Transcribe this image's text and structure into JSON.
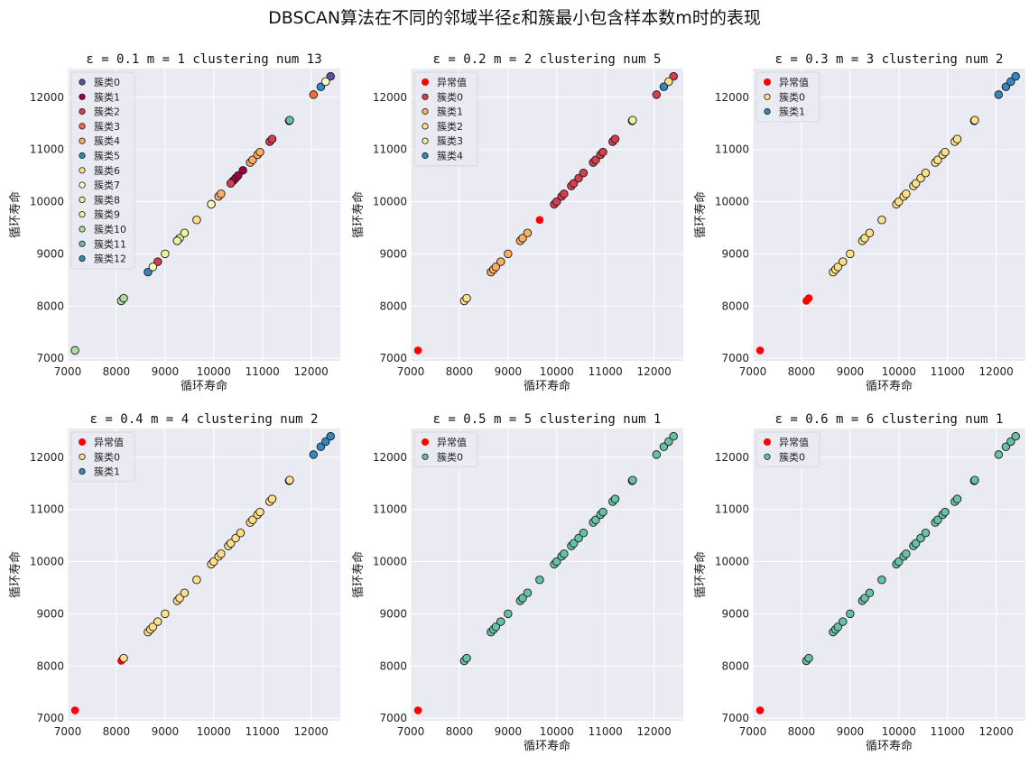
{
  "suptitle": "DBSCAN算法在不同的邻域半径ε和簇最小包含样本数m时的表现",
  "chart_data": [
    {
      "type": "scatter",
      "title": "ε = 0.1 m = 1 clustering num 13",
      "xlabel": "循环寿命",
      "ylabel": "循环寿命",
      "xlim": [
        7000,
        12600
      ],
      "ylim": [
        6950,
        12550
      ],
      "xticks": [
        7000,
        8000,
        9000,
        10000,
        11000,
        12000
      ],
      "yticks": [
        7000,
        8000,
        9000,
        10000,
        11000,
        12000
      ],
      "legend_position": "upper left",
      "series": [
        {
          "name": "簇类0",
          "color": "#5e4fa2",
          "x": [
            12400
          ],
          "y": [
            12400
          ]
        },
        {
          "name": "簇类1",
          "color": "#9e0142",
          "x": [
            10400,
            10450,
            10500,
            10600
          ],
          "y": [
            10400,
            10450,
            10500,
            10600
          ]
        },
        {
          "name": "簇类2",
          "color": "#d53e4f",
          "x": [
            8850,
            10350,
            11150,
            11200
          ],
          "y": [
            8850,
            10350,
            11150,
            11200
          ]
        },
        {
          "name": "簇类3",
          "color": "#f46d43",
          "x": [
            12050
          ],
          "y": [
            12050
          ]
        },
        {
          "name": "簇类4",
          "color": "#fdae61",
          "x": [
            10100,
            10150,
            10750,
            10800,
            10900,
            10950
          ],
          "y": [
            10100,
            10150,
            10750,
            10800,
            10900,
            10950
          ]
        },
        {
          "name": "簇类5",
          "color": "#3288bd",
          "x": [
            8650,
            9950,
            12200
          ],
          "y": [
            8650,
            9950,
            12200
          ]
        },
        {
          "name": "簇类6",
          "color": "#fee08b",
          "x": [
            9650
          ],
          "y": [
            9650
          ]
        },
        {
          "name": "簇类7",
          "color": "#ffffbf",
          "x": [
            8750,
            9950,
            12300
          ],
          "y": [
            8750,
            9950,
            12300
          ]
        },
        {
          "name": "簇类8",
          "color": "#e6f598",
          "x": [
            9000,
            9250,
            9300,
            9400
          ],
          "y": [
            9000,
            9250,
            9300,
            9400
          ]
        },
        {
          "name": "簇类9",
          "color": "#e6f598",
          "x": [
            9250
          ],
          "y": [
            9250
          ]
        },
        {
          "name": "簇类10",
          "color": "#abdda4",
          "x": [
            8100,
            8150,
            7150
          ],
          "y": [
            8100,
            8150,
            7150
          ]
        },
        {
          "name": "簇类11",
          "color": "#66c2a5",
          "x": [
            11550,
            11560
          ],
          "y": [
            11550,
            11560
          ]
        },
        {
          "name": "簇类12",
          "color": "#3288bd",
          "x": [],
          "y": []
        }
      ]
    },
    {
      "type": "scatter",
      "title": "ε = 0.2 m = 2 clustering num 5",
      "xlabel": "循环寿命",
      "ylabel": "循环寿命",
      "xlim": [
        7000,
        12600
      ],
      "ylim": [
        6950,
        12550
      ],
      "xticks": [
        7000,
        8000,
        9000,
        10000,
        11000,
        12000
      ],
      "yticks": [
        7000,
        8000,
        9000,
        10000,
        11000,
        12000
      ],
      "legend_position": "upper left",
      "series": [
        {
          "name": "异常值",
          "color": "#ff0000",
          "x": [
            7150,
            9650
          ],
          "y": [
            7150,
            9650
          ]
        },
        {
          "name": "簇类0",
          "color": "#d53e4f",
          "x": [
            9950,
            10000,
            10100,
            10150,
            10300,
            10350,
            10450,
            10550,
            10750,
            10800,
            10900,
            10950,
            11150,
            11200,
            12050,
            12400
          ],
          "y": [
            9950,
            10000,
            10100,
            10150,
            10300,
            10350,
            10450,
            10550,
            10750,
            10800,
            10900,
            10950,
            11150,
            11200,
            12050,
            12400
          ]
        },
        {
          "name": "簇类1",
          "color": "#fdae61",
          "x": [
            8650,
            8700,
            8750,
            8850,
            9000,
            9250,
            9300,
            9400
          ],
          "y": [
            8650,
            8700,
            8750,
            8850,
            9000,
            9250,
            9300,
            9400
          ]
        },
        {
          "name": "簇类2",
          "color": "#fee08b",
          "x": [
            8100,
            8150,
            12300
          ],
          "y": [
            8100,
            8150,
            12300
          ]
        },
        {
          "name": "簇类3",
          "color": "#e6f598",
          "x": [
            11550,
            11560
          ],
          "y": [
            11550,
            11560
          ]
        },
        {
          "name": "簇类4",
          "color": "#3288bd",
          "x": [
            12200
          ],
          "y": [
            12200
          ]
        }
      ]
    },
    {
      "type": "scatter",
      "title": "ε = 0.3 m = 3 clustering num 2",
      "xlabel": "循环寿命",
      "ylabel": "循环寿命",
      "xlim": [
        7000,
        12600
      ],
      "ylim": [
        6950,
        12550
      ],
      "xticks": [
        7000,
        8000,
        9000,
        10000,
        11000,
        12000
      ],
      "yticks": [
        7000,
        8000,
        9000,
        10000,
        11000,
        12000
      ],
      "legend_position": "upper left",
      "series": [
        {
          "name": "异常值",
          "color": "#ff0000",
          "x": [
            7150,
            8100,
            8150
          ],
          "y": [
            7150,
            8100,
            8150
          ]
        },
        {
          "name": "簇类0",
          "color": "#fee08b",
          "x": [
            8650,
            8700,
            8750,
            8850,
            9000,
            9250,
            9300,
            9400,
            9650,
            9950,
            10000,
            10100,
            10150,
            10300,
            10350,
            10450,
            10550,
            10750,
            10800,
            10900,
            10950,
            11150,
            11200,
            11550,
            11560
          ],
          "y": [
            8650,
            8700,
            8750,
            8850,
            9000,
            9250,
            9300,
            9400,
            9650,
            9950,
            10000,
            10100,
            10150,
            10300,
            10350,
            10450,
            10550,
            10750,
            10800,
            10900,
            10950,
            11150,
            11200,
            11550,
            11560
          ]
        },
        {
          "name": "簇类1",
          "color": "#3288bd",
          "x": [
            12050,
            12200,
            12300,
            12400
          ],
          "y": [
            12050,
            12200,
            12300,
            12400
          ]
        }
      ]
    },
    {
      "type": "scatter",
      "title": "ε = 0.4 m = 4 clustering num 2",
      "xlabel": "",
      "ylabel": "循环寿命",
      "xlim": [
        7000,
        12600
      ],
      "ylim": [
        6950,
        12550
      ],
      "xticks": [
        7000,
        8000,
        9000,
        10000,
        11000,
        12000
      ],
      "yticks": [
        7000,
        8000,
        9000,
        10000,
        11000,
        12000
      ],
      "legend_position": "upper left",
      "series": [
        {
          "name": "异常值",
          "color": "#ff0000",
          "x": [
            7150,
            8100
          ],
          "y": [
            7150,
            8100
          ]
        },
        {
          "name": "簇类0",
          "color": "#fee08b",
          "x": [
            8150,
            8650,
            8700,
            8750,
            8850,
            9000,
            9250,
            9300,
            9400,
            9650,
            9950,
            10000,
            10100,
            10150,
            10300,
            10350,
            10450,
            10550,
            10750,
            10800,
            10900,
            10950,
            11150,
            11200,
            11550,
            11560
          ],
          "y": [
            8150,
            8650,
            8700,
            8750,
            8850,
            9000,
            9250,
            9300,
            9400,
            9650,
            9950,
            10000,
            10100,
            10150,
            10300,
            10350,
            10450,
            10550,
            10750,
            10800,
            10900,
            10950,
            11150,
            11200,
            11550,
            11560
          ]
        },
        {
          "name": "簇类1",
          "color": "#3288bd",
          "x": [
            12050,
            12200,
            12300,
            12400
          ],
          "y": [
            12050,
            12200,
            12300,
            12400
          ]
        }
      ]
    },
    {
      "type": "scatter",
      "title": "ε = 0.5 m = 5 clustering num 1",
      "xlabel": "循环寿命",
      "ylabel": "循环寿命",
      "xlim": [
        7000,
        12600
      ],
      "ylim": [
        6950,
        12550
      ],
      "xticks": [
        7000,
        8000,
        9000,
        10000,
        11000,
        12000
      ],
      "yticks": [
        7000,
        8000,
        9000,
        10000,
        11000,
        12000
      ],
      "legend_position": "upper left",
      "series": [
        {
          "name": "异常值",
          "color": "#ff0000",
          "x": [
            7150
          ],
          "y": [
            7150
          ]
        },
        {
          "name": "簇类0",
          "color": "#66c2a5",
          "x": [
            8100,
            8150,
            8650,
            8700,
            8750,
            8850,
            9000,
            9250,
            9300,
            9400,
            9650,
            9950,
            10000,
            10100,
            10150,
            10300,
            10350,
            10450,
            10550,
            10750,
            10800,
            10900,
            10950,
            11150,
            11200,
            11550,
            11560,
            12050,
            12200,
            12300,
            12400
          ],
          "y": [
            8100,
            8150,
            8650,
            8700,
            8750,
            8850,
            9000,
            9250,
            9300,
            9400,
            9650,
            9950,
            10000,
            10100,
            10150,
            10300,
            10350,
            10450,
            10550,
            10750,
            10800,
            10900,
            10950,
            11150,
            11200,
            11550,
            11560,
            12050,
            12200,
            12300,
            12400
          ]
        }
      ]
    },
    {
      "type": "scatter",
      "title": "ε = 0.6 m = 6 clustering num 1",
      "xlabel": "循环寿命",
      "ylabel": "循环寿命",
      "xlim": [
        7000,
        12600
      ],
      "ylim": [
        6950,
        12550
      ],
      "xticks": [
        7000,
        8000,
        9000,
        10000,
        11000,
        12000
      ],
      "yticks": [
        7000,
        8000,
        9000,
        10000,
        11000,
        12000
      ],
      "legend_position": "upper left",
      "series": [
        {
          "name": "异常值",
          "color": "#ff0000",
          "x": [
            7150
          ],
          "y": [
            7150
          ]
        },
        {
          "name": "簇类0",
          "color": "#66c2a5",
          "x": [
            8100,
            8150,
            8650,
            8700,
            8750,
            8850,
            9000,
            9250,
            9300,
            9400,
            9650,
            9950,
            10000,
            10100,
            10150,
            10300,
            10350,
            10450,
            10550,
            10750,
            10800,
            10900,
            10950,
            11150,
            11200,
            11550,
            11560,
            12050,
            12200,
            12300,
            12400
          ],
          "y": [
            8100,
            8150,
            8650,
            8700,
            8750,
            8850,
            9000,
            9250,
            9300,
            9400,
            9650,
            9950,
            10000,
            10100,
            10150,
            10300,
            10350,
            10450,
            10550,
            10750,
            10800,
            10900,
            10950,
            11150,
            11200,
            11550,
            11560,
            12050,
            12200,
            12300,
            12400
          ]
        }
      ]
    }
  ]
}
